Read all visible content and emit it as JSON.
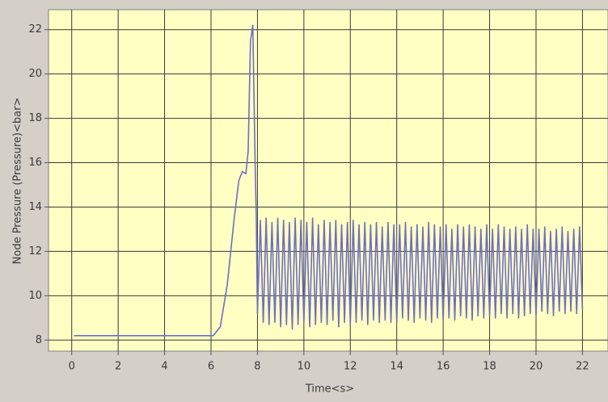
{
  "chart_data": {
    "type": "line",
    "xlabel": "Time<s>",
    "ylabel": "Node  Pressure (Pressure)<bar>",
    "xlim": [
      -1,
      23.1
    ],
    "ylim": [
      7.5,
      22.9
    ],
    "xticks": [
      0,
      2,
      4,
      6,
      8,
      10,
      12,
      14,
      16,
      18,
      20,
      22
    ],
    "yticks": [
      8,
      10,
      12,
      14,
      16,
      18,
      20,
      22
    ],
    "grid": true,
    "series": [
      {
        "color": "#6e6ec4",
        "x": [
          0.1,
          6.1,
          6.4,
          6.7,
          7.0,
          7.2,
          7.35,
          7.5,
          7.6,
          7.7,
          7.8,
          7.9,
          7.95,
          8,
          8.125,
          8.25,
          8.375,
          8.5,
          8.625,
          8.75,
          8.875,
          9,
          9.125,
          9.25,
          9.375,
          9.5,
          9.625,
          9.75,
          9.875,
          10,
          10.125,
          10.25,
          10.375,
          10.5,
          10.625,
          10.75,
          10.875,
          11,
          11.125,
          11.25,
          11.375,
          11.5,
          11.625,
          11.75,
          11.875,
          12,
          12.125,
          12.25,
          12.375,
          12.5,
          12.625,
          12.75,
          12.875,
          13,
          13.125,
          13.25,
          13.375,
          13.5,
          13.625,
          13.75,
          13.875,
          14,
          14.125,
          14.25,
          14.375,
          14.5,
          14.625,
          14.75,
          14.875,
          15,
          15.125,
          15.25,
          15.375,
          15.5,
          15.625,
          15.75,
          15.875,
          16,
          16.125,
          16.25,
          16.375,
          16.5,
          16.625,
          16.75,
          16.875,
          17,
          17.125,
          17.25,
          17.375,
          17.5,
          17.625,
          17.75,
          17.875,
          18,
          18.125,
          18.25,
          18.375,
          18.5,
          18.625,
          18.75,
          18.875,
          19,
          19.125,
          19.25,
          19.375,
          19.5,
          19.625,
          19.75,
          19.875,
          20,
          20.125,
          20.25,
          20.375,
          20.5,
          20.625,
          20.75,
          20.875,
          21,
          21.125,
          21.25,
          21.375,
          21.5,
          21.625,
          21.75,
          21.875,
          22
        ],
        "values": [
          8.2,
          8.2,
          8.6,
          10.5,
          13.5,
          15.2,
          15.6,
          15.5,
          16.5,
          21.5,
          22.2,
          16,
          13.5,
          9.2,
          13.4,
          8.8,
          13.5,
          8.7,
          13.3,
          8.8,
          13.5,
          8.6,
          13.4,
          8.7,
          13.3,
          8.5,
          13.5,
          8.7,
          13.4,
          8.8,
          13.3,
          8.6,
          13.5,
          8.7,
          13.2,
          8.8,
          13.4,
          8.7,
          13.3,
          8.9,
          13.4,
          8.6,
          13.2,
          8.8,
          13.3,
          8.7,
          13.4,
          8.8,
          13.2,
          8.9,
          13.3,
          8.7,
          13.2,
          8.9,
          13.3,
          8.8,
          13.1,
          8.9,
          13.3,
          8.8,
          13.2,
          8.8,
          13.2,
          9.0,
          13.3,
          8.9,
          13.1,
          8.8,
          13.2,
          9.0,
          13.1,
          8.9,
          13.3,
          8.8,
          13.2,
          9.0,
          13.1,
          8.9,
          13.2,
          9.0,
          13.0,
          8.9,
          13.2,
          9.1,
          13.1,
          9.0,
          13.2,
          8.9,
          13.1,
          9.1,
          13.0,
          9.0,
          13.2,
          9.1,
          13.0,
          9.0,
          13.2,
          9.2,
          13.1,
          9.0,
          13.0,
          9.2,
          13.1,
          9.0,
          13.0,
          9.1,
          13.2,
          9.2,
          13.0,
          9.1,
          13.0,
          9.3,
          13.1,
          9.2,
          12.9,
          9.1,
          13.0,
          9.3,
          13.1,
          9.2,
          12.9,
          9.3,
          13.0,
          9.2,
          13.1,
          9.4
        ]
      }
    ]
  }
}
